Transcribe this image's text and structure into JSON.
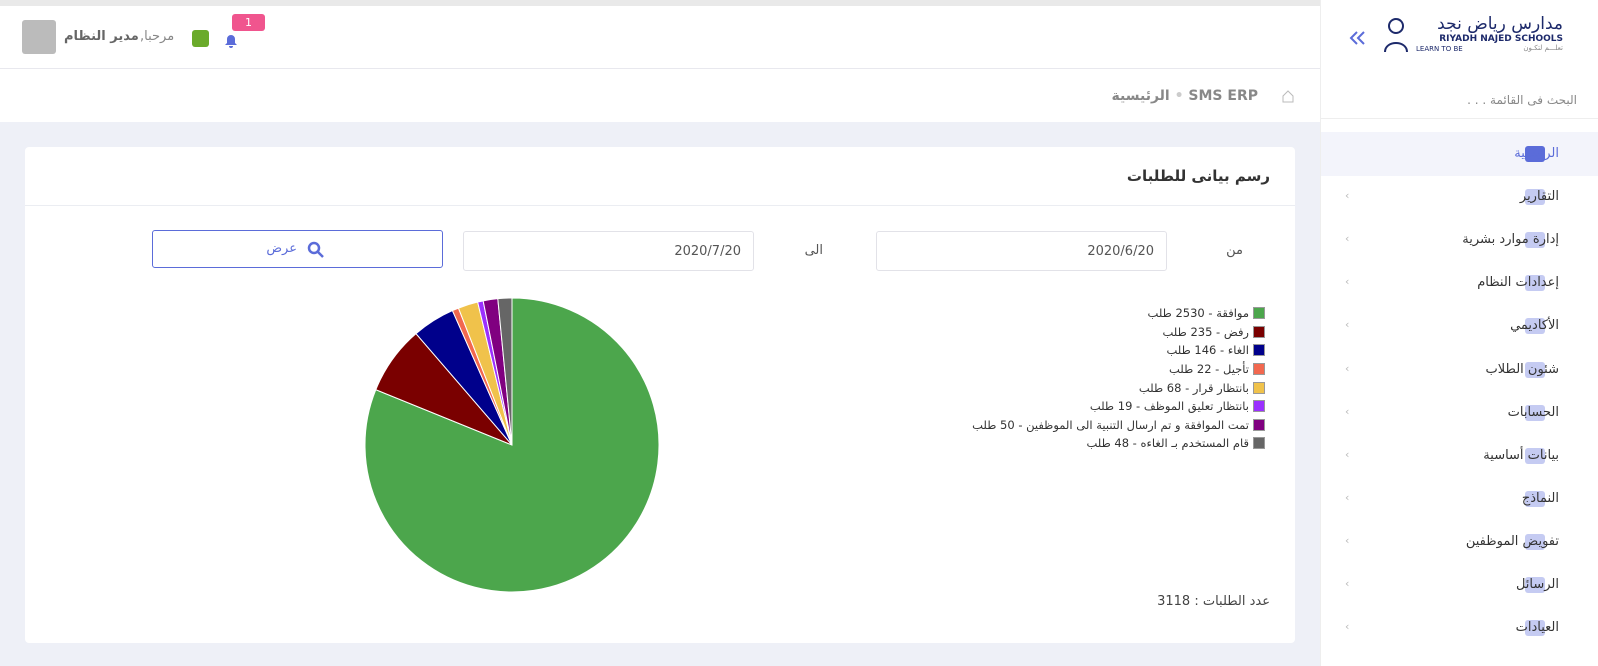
{
  "header": {
    "notification_count": 1,
    "greeting": "مرحبا,",
    "user": "مدير النظام"
  },
  "breadcrumb": [
    "SMS ERP",
    "الرئيسية"
  ],
  "sidebar": {
    "logo_ar": "مدارس رياض نجد",
    "logo_en": "RIYADH NAJED SCHOOLS",
    "tagline_en": "LEARN TO BE",
    "tagline_ar": "تعلـــم لتكـون",
    "search_placeholder": "البحث فى القائمة . . .",
    "menu": [
      "الرئيسية",
      "التقارير",
      "إدارة موارد بشرية",
      "إعدادات النظام",
      "الأكاديمي",
      "شئون الطلاب",
      "الحسابات",
      "بيانات أساسية",
      "النماذج",
      "تفويض الموظفين",
      "الرسائل",
      "العيادات"
    ]
  },
  "card": {
    "title": "رسم بيانى للطلبات",
    "from_label": "من",
    "from_date": "2020/6/20",
    "to_label": "الى",
    "to_date": "2020/7/20",
    "button": "عرض",
    "total_label": "عدد الطلبات :",
    "total": 3118
  },
  "chart_data": {
    "type": "pie",
    "labels": [
      "موافقة - 2530 طلب",
      "رفض - 235 طلب",
      "الغاء - 146 طلب",
      "تأجيل - 22 طلب",
      "بانتظار قرار - 68 طلب",
      "بانتظار تعليق الموظف - 19 طلب",
      "تمت الموافقة و تم ارسال التنبية الى الموظفين - 50 طلب",
      "قام المستخدم بـ الغاءه - 48 طلب"
    ],
    "values": [
      2530,
      235,
      146,
      22,
      68,
      19,
      50,
      48
    ],
    "colors": [
      "#4ca64c",
      "#7a0000",
      "#00008b",
      "#f2684f",
      "#f0c24b",
      "#9b30ff",
      "#800080",
      "#666666"
    ]
  }
}
